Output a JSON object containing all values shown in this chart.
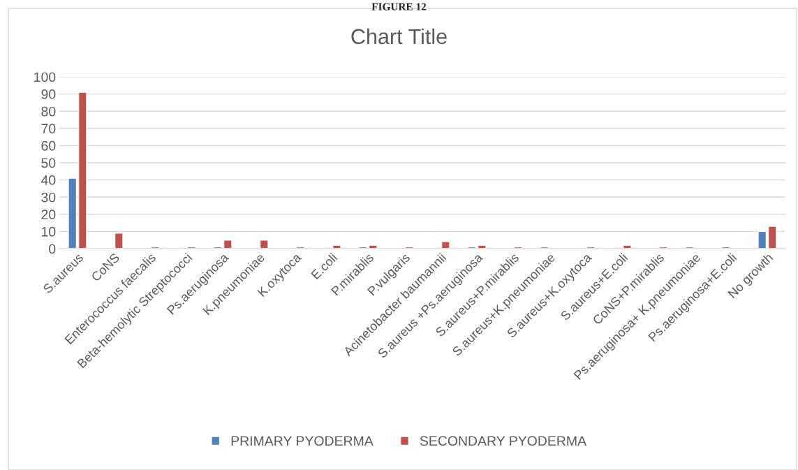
{
  "chart_data": {
    "type": "bar",
    "title": "Chart Title",
    "annotations": [
      "FIGURE 12"
    ],
    "categories": [
      "S.aureus",
      "CoNS",
      "Enterococcus faecalis",
      "Beta-hemolytic Streptococci",
      "Ps.aeruginosa",
      "K.pneumoniae",
      "K.oxytoca",
      "E.coli",
      "P.mirablis",
      "P.vulgaris",
      "Acinetobacter baumannii",
      "S.aureus +Ps.aeruginosa",
      "S.aureus+P.mirablis",
      "S.aureus+K.pneumoniae",
      "S.aureus+K.oxytoca",
      "S.aureus+E.coli",
      "CoNS+P.mirablis",
      "Ps.aeruginosa+ K.pneumoniae",
      "Ps.aeruginosa+E.coli",
      "No growth"
    ],
    "series": [
      {
        "name": "PRIMARY PYODERMA",
        "color": "#4f81bd",
        "values": [
          41,
          null,
          null,
          null,
          1,
          null,
          null,
          null,
          1,
          null,
          null,
          1,
          null,
          1,
          null,
          null,
          null,
          1,
          1,
          10
        ]
      },
      {
        "name": "SECONDARY PYODERMA",
        "color": "#c0504d",
        "values": [
          91,
          9,
          1,
          1,
          5,
          5,
          1,
          2,
          2,
          1,
          4,
          2,
          1,
          null,
          1,
          2,
          1,
          null,
          null,
          13
        ]
      }
    ],
    "ylim": [
      0,
      100
    ],
    "yticks": [
      0,
      10,
      20,
      30,
      40,
      50,
      60,
      70,
      80,
      90,
      100
    ],
    "grid": "y",
    "legend": "bottom"
  }
}
